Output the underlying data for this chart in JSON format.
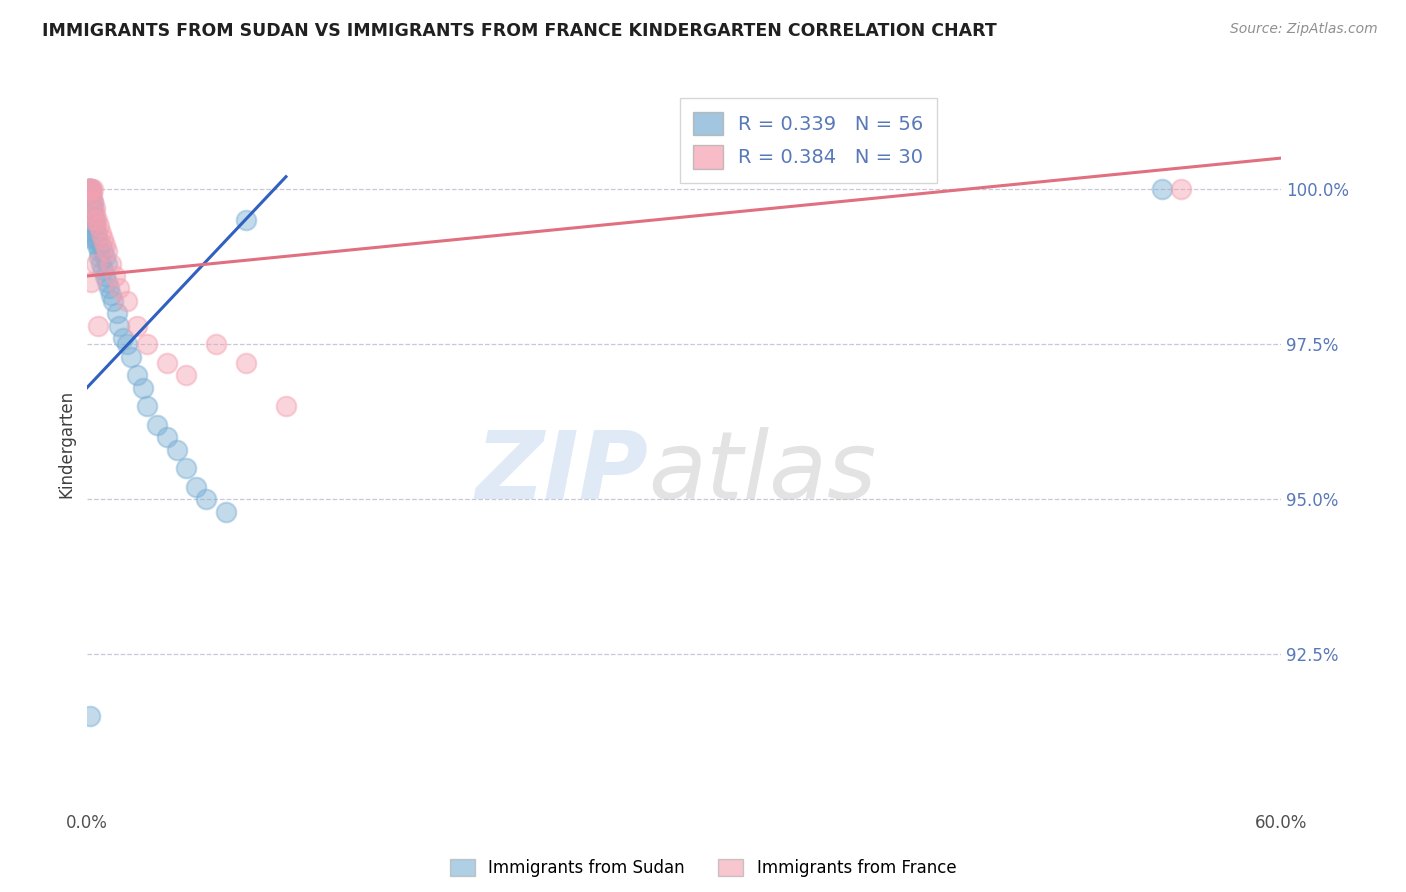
{
  "title": "IMMIGRANTS FROM SUDAN VS IMMIGRANTS FROM FRANCE KINDERGARTEN CORRELATION CHART",
  "source_text": "Source: ZipAtlas.com",
  "ylabel": "Kindergarten",
  "xlim": [
    0.0,
    60.0
  ],
  "ylim": [
    90.0,
    101.8
  ],
  "xtick_labels": [
    "0.0%",
    "60.0%"
  ],
  "xtick_values": [
    0.0,
    60.0
  ],
  "ytick_labels": [
    "92.5%",
    "95.0%",
    "97.5%",
    "100.0%"
  ],
  "ytick_values": [
    92.5,
    95.0,
    97.5,
    100.0
  ],
  "legend_entries": [
    {
      "label": "R = 0.339   N = 56",
      "color": "#a8c4e0"
    },
    {
      "label": "R = 0.384   N = 30",
      "color": "#f4a8b8"
    }
  ],
  "sudan_color": "#7bafd4",
  "france_color": "#f4a0b0",
  "sudan_line_color": "#3060c0",
  "france_line_color": "#e07080",
  "background_color": "#ffffff",
  "grid_color": "#c8c8d8",
  "title_color": "#202020",
  "axis_label_color": "#404040",
  "right_tick_color": "#5878b8",
  "sudan_scatter_x": [
    0.1,
    0.1,
    0.15,
    0.15,
    0.2,
    0.2,
    0.2,
    0.25,
    0.3,
    0.3,
    0.3,
    0.35,
    0.4,
    0.4,
    0.4,
    0.45,
    0.5,
    0.5,
    0.5,
    0.6,
    0.6,
    0.7,
    0.7,
    0.8,
    0.8,
    0.9,
    0.9,
    1.0,
    1.0,
    1.1,
    1.2,
    1.3,
    1.5,
    1.6,
    1.8,
    2.0,
    2.2,
    2.5,
    2.8,
    3.0,
    3.5,
    4.0,
    4.5,
    5.0,
    5.5,
    6.0,
    7.0,
    8.0,
    0.05,
    0.08,
    0.12,
    0.18,
    0.22,
    0.28,
    54.0,
    0.15
  ],
  "sudan_scatter_y": [
    100.0,
    100.0,
    100.0,
    99.9,
    100.0,
    99.9,
    99.8,
    99.7,
    99.8,
    99.7,
    99.6,
    99.5,
    99.5,
    99.4,
    99.3,
    99.2,
    99.3,
    99.2,
    99.1,
    99.0,
    98.9,
    99.1,
    98.8,
    99.0,
    98.7,
    98.9,
    98.6,
    98.8,
    98.5,
    98.4,
    98.3,
    98.2,
    98.0,
    97.8,
    97.6,
    97.5,
    97.3,
    97.0,
    96.8,
    96.5,
    96.2,
    96.0,
    95.8,
    95.5,
    95.2,
    95.0,
    94.8,
    99.5,
    99.9,
    99.8,
    100.0,
    99.6,
    99.4,
    99.2,
    100.0,
    91.5
  ],
  "france_scatter_x": [
    0.1,
    0.15,
    0.2,
    0.25,
    0.3,
    0.3,
    0.4,
    0.4,
    0.5,
    0.6,
    0.7,
    0.8,
    0.9,
    1.0,
    1.2,
    1.4,
    1.6,
    2.0,
    2.5,
    3.0,
    4.0,
    5.0,
    6.5,
    8.0,
    10.0,
    55.0,
    0.35,
    0.45,
    0.55,
    0.2
  ],
  "france_scatter_y": [
    100.0,
    100.0,
    100.0,
    99.9,
    99.8,
    100.0,
    99.7,
    99.6,
    99.5,
    99.4,
    99.3,
    99.2,
    99.1,
    99.0,
    98.8,
    98.6,
    98.4,
    98.2,
    97.8,
    97.5,
    97.2,
    97.0,
    97.5,
    97.2,
    96.5,
    100.0,
    99.5,
    98.8,
    97.8,
    98.5
  ],
  "sudan_trendline_x": [
    0.0,
    10.0
  ],
  "sudan_trendline_y": [
    96.8,
    100.2
  ],
  "france_trendline_x": [
    0.0,
    60.0
  ],
  "france_trendline_y": [
    98.6,
    100.5
  ]
}
